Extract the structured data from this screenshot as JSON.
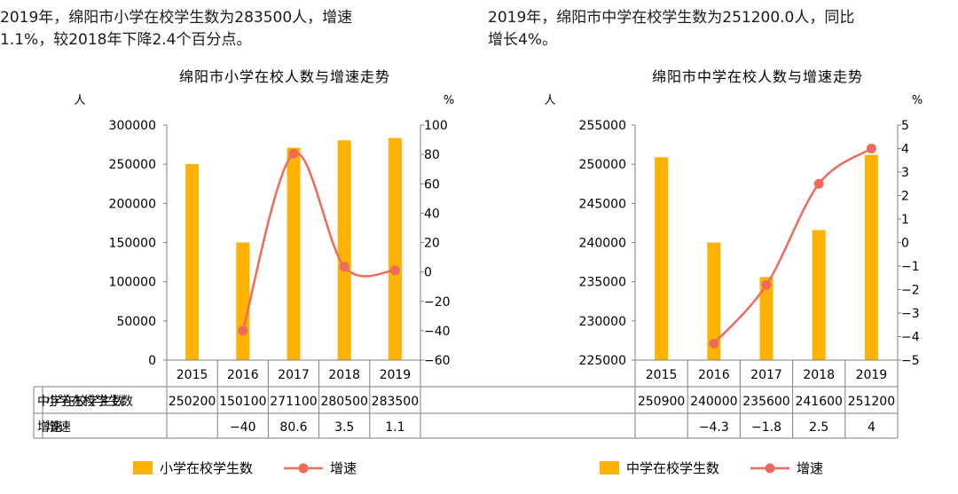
{
  "captions": {
    "left": "2019年，绵阳市小学在校学生数为283500人，增速\n1.1%，较2018年下降2.4个百分点。",
    "right": "2019年，绵阳市中学在校学生数为251200.0人，同比\n增长4%。"
  },
  "chart_data": [
    {
      "type": "bar",
      "title": "绵阳市小学在校人数与增速走势",
      "categories": [
        "2015",
        "2016",
        "2017",
        "2018",
        "2019"
      ],
      "y_left_unit": "人",
      "y_right_unit": "%",
      "ylim_left": [
        0,
        300000
      ],
      "yticks_left": [
        0,
        50000,
        100000,
        150000,
        200000,
        250000,
        300000
      ],
      "ylim_right": [
        -60,
        100
      ],
      "yticks_right": [
        -60,
        -40,
        -20,
        0,
        20,
        40,
        60,
        80,
        100
      ],
      "yticklabels_right": [
        "−60",
        "−40",
        "−20",
        "0",
        "20",
        "40",
        "60",
        "80",
        "100"
      ],
      "series": [
        {
          "name": "小学在校学生数",
          "kind": "bar",
          "axis": "left",
          "color": "#FFB300",
          "values": [
            250200,
            150100,
            271100,
            280500,
            283500
          ],
          "labels": [
            "250200",
            "150100",
            "271100",
            "280500",
            "283500"
          ]
        },
        {
          "name": "增速",
          "kind": "line",
          "axis": "right",
          "color": "#EE6A5A",
          "values": [
            null,
            -40,
            80.6,
            3.5,
            1.1
          ],
          "labels": [
            "",
            "−40",
            "80.6",
            "3.5",
            "1.1"
          ]
        }
      ],
      "legend": "bottom"
    },
    {
      "type": "bar",
      "title": "绵阳市中学在校人数与增速走势",
      "categories": [
        "2015",
        "2016",
        "2017",
        "2018",
        "2019"
      ],
      "y_left_unit": "人",
      "y_right_unit": "%",
      "ylim_left": [
        225000,
        255000
      ],
      "yticks_left": [
        225000,
        230000,
        235000,
        240000,
        245000,
        250000,
        255000
      ],
      "ylim_right": [
        -5,
        5
      ],
      "yticks_right": [
        -5,
        -4,
        -3,
        -2,
        -1,
        0,
        1,
        2,
        3,
        4,
        5
      ],
      "yticklabels_right": [
        "−5",
        "−4",
        "−3",
        "−2",
        "−1",
        "0",
        "1",
        "2",
        "3",
        "4",
        "5"
      ],
      "series": [
        {
          "name": "中学在校学生数",
          "kind": "bar",
          "axis": "left",
          "color": "#FFB300",
          "values": [
            250900,
            240000,
            235600,
            241600,
            251200
          ],
          "labels": [
            "250900",
            "240000",
            "235600",
            "241600",
            "251200"
          ]
        },
        {
          "name": "增速",
          "kind": "line",
          "axis": "right",
          "color": "#EE6A5A",
          "values": [
            null,
            -4.3,
            -1.8,
            2.5,
            4
          ],
          "labels": [
            "",
            "−4.3",
            "−1.8",
            "2.5",
            "4"
          ]
        }
      ],
      "legend": "bottom"
    }
  ]
}
